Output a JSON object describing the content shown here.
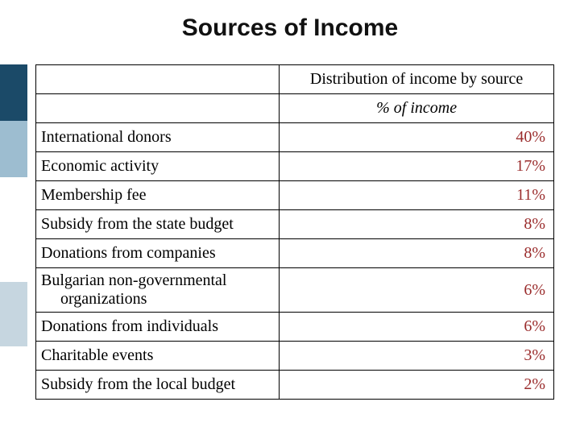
{
  "slide": {
    "title": "Sources of Income",
    "title_fontsize": 30,
    "font_family_title": "Arial",
    "font_family_body": "Times New Roman",
    "background_color": "#ffffff",
    "side_bands": [
      {
        "color": "#1b4a68"
      },
      {
        "color": "#9dbdd0"
      },
      {
        "color": "#ffffff"
      },
      {
        "color": "#c6d6e0"
      }
    ]
  },
  "table": {
    "type": "table",
    "border_color": "#000000",
    "value_color": "#9b2d2d",
    "header_merged": "Distribution of income by source",
    "subheader": "% of income",
    "columns": [
      "",
      ""
    ],
    "col_widths_pct": [
      47,
      53
    ],
    "rows": [
      {
        "label": "International donors",
        "value": "40%"
      },
      {
        "label": "Economic activity",
        "value": "17%"
      },
      {
        "label": "Membership fee",
        "value": "11%"
      },
      {
        "label": "Subsidy from the state budget",
        "value": "8%"
      },
      {
        "label": "Donations from companies",
        "value": "8%"
      },
      {
        "label": "Bulgarian non-governmental",
        "label_line2": "organizations",
        "value": "6%"
      },
      {
        "label": "Donations from individuals",
        "value": "6%"
      },
      {
        "label": "Charitable events",
        "value": "3%"
      },
      {
        "label": "Subsidy from the local budget",
        "value": "2%"
      }
    ]
  }
}
